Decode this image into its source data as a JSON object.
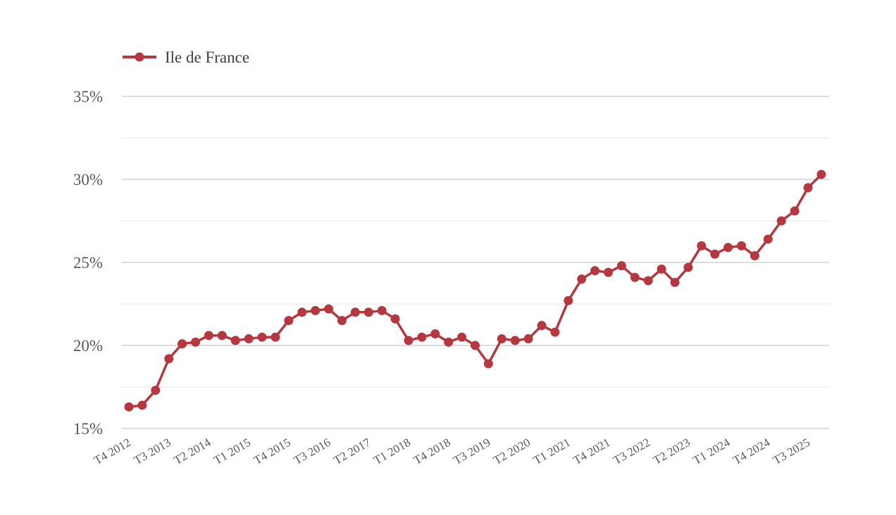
{
  "chart_data": {
    "type": "line",
    "title": "",
    "xlabel": "",
    "ylabel": "",
    "ylim": [
      15,
      35
    ],
    "y_ticks": [
      "15%",
      "20%",
      "25%",
      "30%",
      "35%"
    ],
    "grid": true,
    "legend_position": "top-left",
    "series_color": "#b5373f",
    "categories": [
      "T4 2012",
      "T1 2013",
      "T2 2013",
      "T3 2013",
      "T4 2013",
      "T1 2014",
      "T2 2014",
      "T3 2014",
      "T4 2014",
      "T1 2015",
      "T2 2015",
      "T3 2015",
      "T4 2015",
      "T1 2016",
      "T2 2016",
      "T3 2016",
      "T4 2016",
      "T1 2017",
      "T2 2017",
      "T3 2017",
      "T4 2017",
      "T1 2018",
      "T2 2018",
      "T3 2018",
      "T4 2018",
      "T1 2019",
      "T2 2019",
      "T3 2019",
      "T4 2019",
      "T1 2020",
      "T2 2020",
      "T3 2020",
      "T4 2020",
      "T1 2021",
      "T2 2021",
      "T3 2021",
      "T4 2021",
      "T1 2022",
      "T2 2022",
      "T3 2022",
      "T4 2022",
      "T1 2023",
      "T2 2023",
      "T3 2023",
      "T4 2023",
      "T1 2024",
      "T2 2024",
      "T3 2024",
      "T4 2024",
      "T1 2025",
      "T2 2025",
      "T3 2025",
      "T4 2025"
    ],
    "x_tick_labels": [
      "T4 2012",
      "T3 2013",
      "T2 2014",
      "T1 2015",
      "T4 2015",
      "T3 2016",
      "T2 2017",
      "T1 2018",
      "T4 2018",
      "T3 2019",
      "T2 2020",
      "T1 2021",
      "T4 2021",
      "T3 2022",
      "T2 2023",
      "T1 2024",
      "T4 2024",
      "T3 2025"
    ],
    "series": [
      {
        "name": "Ile de France",
        "values": [
          16.3,
          16.4,
          17.3,
          19.2,
          20.1,
          20.2,
          20.6,
          20.6,
          20.3,
          20.4,
          20.5,
          20.5,
          21.5,
          22.0,
          22.1,
          22.2,
          21.5,
          22.0,
          22.0,
          22.1,
          21.6,
          20.3,
          20.5,
          20.7,
          20.2,
          20.5,
          20.0,
          18.9,
          20.4,
          20.3,
          20.4,
          21.2,
          20.8,
          22.7,
          24.0,
          24.5,
          24.4,
          24.8,
          24.1,
          23.9,
          24.6,
          23.8,
          24.7,
          26.0,
          25.5,
          25.9,
          26.0,
          25.4,
          26.4,
          27.5,
          28.1,
          29.5,
          30.3
        ]
      }
    ]
  }
}
